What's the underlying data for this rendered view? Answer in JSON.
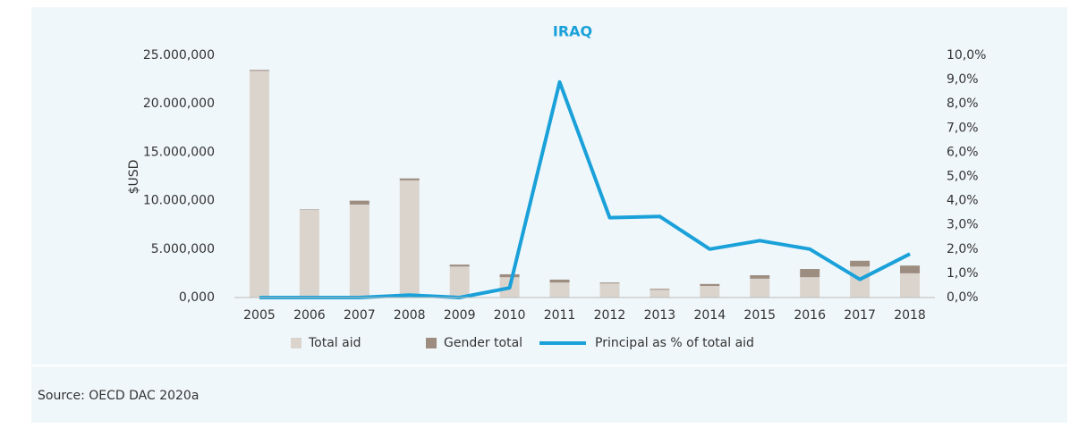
{
  "chart_data": {
    "type": "bar",
    "title": "IRAQ",
    "y_label": "$USD",
    "source": "Source: OECD DAC 2020a",
    "categories": [
      "2005",
      "2006",
      "2007",
      "2008",
      "2009",
      "2010",
      "2011",
      "2012",
      "2013",
      "2014",
      "2015",
      "2016",
      "2017",
      "2018"
    ],
    "series": [
      {
        "name": "Total aid",
        "type": "bar",
        "color": "#dbd4cd",
        "values": [
          23400000.0,
          9050000.0,
          9600000.0,
          12100000.0,
          3200000.0,
          2100000.0,
          1550000.0,
          1450000.0,
          800000.0,
          1200000.0,
          1950000.0,
          2100000.0,
          3200000.0,
          2500000.0
        ]
      },
      {
        "name": "Gender total",
        "type": "bar",
        "color": "#9d8d80",
        "values": [
          100000.0,
          50000.0,
          400000.0,
          200000.0,
          200000.0,
          300000.0,
          300000.0,
          100000.0,
          100000.0,
          200000.0,
          350000.0,
          850000.0,
          600000.0,
          800000.0
        ]
      },
      {
        "name": "Principal as % of total aid",
        "type": "line",
        "axis": "y2",
        "color": "#1ba1d9",
        "values": [
          0,
          0,
          0,
          0.1,
          0,
          0.4,
          8.9,
          3.3,
          3.35,
          2.0,
          2.35,
          2.0,
          0.75,
          1.8
        ]
      }
    ],
    "stacked": true,
    "ylim": [
      0,
      25000000
    ],
    "yticks": [
      {
        "value": 0,
        "label": "0,000"
      },
      {
        "value": 5000000,
        "label": "5.000,000"
      },
      {
        "value": 10000000,
        "label": "10.000,000"
      },
      {
        "value": 15000000,
        "label": "15.000,000"
      },
      {
        "value": 20000000,
        "label": "20.000,000"
      },
      {
        "value": 25000000,
        "label": "25.000,000"
      }
    ],
    "y2lim": [
      0,
      10
    ],
    "y2ticks": [
      {
        "value": 0,
        "label": "0,0%"
      },
      {
        "value": 1,
        "label": "1,0%"
      },
      {
        "value": 2,
        "label": "2,0%"
      },
      {
        "value": 3,
        "label": "3,0%"
      },
      {
        "value": 4,
        "label": "4,0%"
      },
      {
        "value": 5,
        "label": "5,0%"
      },
      {
        "value": 6,
        "label": "6,0%"
      },
      {
        "value": 7,
        "label": "7,0%"
      },
      {
        "value": 8,
        "label": "8,0%"
      },
      {
        "value": 9,
        "label": "9,0%"
      },
      {
        "value": 10,
        "label": "10,0%"
      }
    ],
    "legend": "bottom",
    "grid": false
  }
}
